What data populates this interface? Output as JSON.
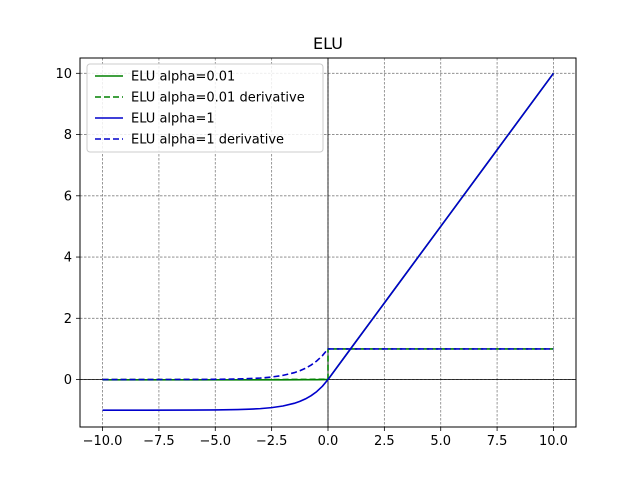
{
  "chart_data": {
    "type": "line",
    "title": "ELU",
    "xlabel": "",
    "ylabel": "",
    "xlim": [
      -11,
      11
    ],
    "ylim": [
      -1.55,
      10.5
    ],
    "xticks": [
      -10.0,
      -7.5,
      -5.0,
      -2.5,
      0.0,
      2.5,
      5.0,
      7.5,
      10.0
    ],
    "xtick_labels": [
      "−10.0",
      "−7.5",
      "−5.0",
      "−2.5",
      "0.0",
      "2.5",
      "5.0",
      "7.5",
      "10.0"
    ],
    "yticks": [
      0,
      2,
      4,
      6,
      8,
      10
    ],
    "ytick_labels": [
      "0",
      "2",
      "4",
      "6",
      "8",
      "10"
    ],
    "grid": true,
    "legend_position": "top-left",
    "series": [
      {
        "name": "ELU alpha=0.01",
        "color": "#008000",
        "dash": "solid",
        "x": [
          -10,
          -7.5,
          -5,
          -3,
          -2,
          -1,
          -0.5,
          -0.2,
          0,
          1,
          2.5,
          5,
          7.5,
          10
        ],
        "y": [
          -0.01,
          -0.0099,
          -0.0099,
          -0.0095,
          -0.0086,
          -0.0063,
          -0.0039,
          -0.0018,
          0,
          1,
          2.5,
          5,
          7.5,
          10
        ]
      },
      {
        "name": "ELU alpha=0.01 derivative",
        "color": "#008000",
        "dash": "dashed",
        "x": [
          -10,
          -5,
          -2,
          -1,
          -0.5,
          0,
          0,
          2.5,
          5,
          7.5,
          10
        ],
        "y": [
          0.0,
          0.0001,
          0.0014,
          0.0037,
          0.0061,
          0.01,
          1,
          1,
          1,
          1,
          1
        ]
      },
      {
        "name": "ELU alpha=1",
        "color": "#0000cc",
        "dash": "solid",
        "x": [
          -10,
          -8,
          -6,
          -5,
          -4,
          -3.5,
          -3,
          -2.5,
          -2,
          -1.5,
          -1.25,
          -1,
          -0.75,
          -0.5,
          -0.25,
          0,
          1,
          2.5,
          5,
          7.5,
          10
        ],
        "y": [
          -1.0,
          -0.9997,
          -0.9975,
          -0.9933,
          -0.9817,
          -0.9698,
          -0.9502,
          -0.9179,
          -0.8647,
          -0.7769,
          -0.7135,
          -0.6321,
          -0.5276,
          -0.3935,
          -0.2212,
          0,
          1,
          2.5,
          5,
          7.5,
          10
        ]
      },
      {
        "name": "ELU alpha=1 derivative",
        "color": "#0000cc",
        "dash": "dashed",
        "x": [
          -10,
          -8,
          -6,
          -5,
          -4,
          -3.5,
          -3,
          -2.5,
          -2,
          -1.5,
          -1.25,
          -1,
          -0.75,
          -0.5,
          -0.25,
          0,
          0,
          2.5,
          5,
          7.5,
          10
        ],
        "y": [
          0.0,
          0.0003,
          0.0025,
          0.0067,
          0.0183,
          0.0302,
          0.0498,
          0.0821,
          0.1353,
          0.2231,
          0.2865,
          0.3679,
          0.4724,
          0.6065,
          0.7788,
          1,
          1,
          1,
          1,
          1,
          1
        ]
      }
    ]
  }
}
